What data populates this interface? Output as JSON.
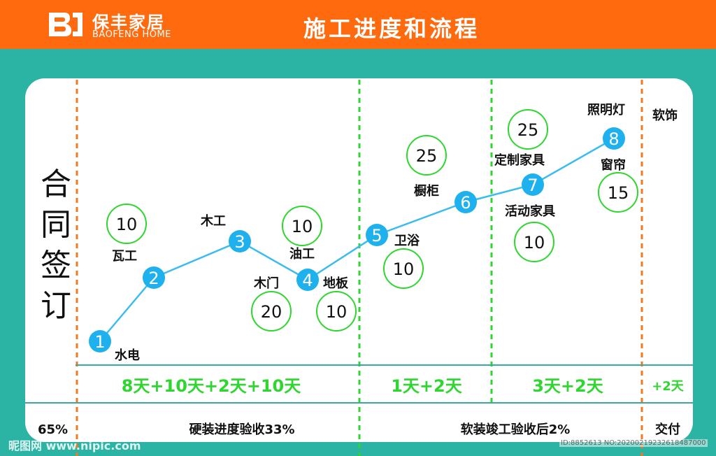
{
  "brand": {
    "name_cn": "保丰家居",
    "name_en": "BAOFENG HOME"
  },
  "title": "施工进度和流程",
  "contract_label": [
    "合",
    "同",
    "签",
    "订"
  ],
  "softdeco_label": "软饰",
  "steps": [
    {
      "num": "1",
      "name": "水电"
    },
    {
      "num": "2",
      "name": "瓦工"
    },
    {
      "num": "3",
      "name": "木工"
    },
    {
      "num": "4",
      "name": "油工"
    },
    {
      "num": "5",
      "name": "卫浴"
    },
    {
      "num": "6",
      "name": "橱柜"
    },
    {
      "num": "7",
      "name": "定制家具"
    },
    {
      "num": "8",
      "name": "照明灯"
    }
  ],
  "extra_labels": {
    "door": "木门",
    "floor": "地板",
    "movable_furniture": "活动家具",
    "curtain": "窗帘"
  },
  "day_circles": [
    "10",
    "10",
    "20",
    "10",
    "10",
    "25",
    "25",
    "10",
    "15"
  ],
  "durations": [
    "8天+10天+2天+10天",
    "1天+2天",
    "3天+2天",
    "+2天"
  ],
  "bottom": {
    "pct_left": "65%",
    "hard_check": "硬装进度验收33%",
    "soft_check": "软装竣工验收后2%",
    "delivery": "交付"
  },
  "watermark": {
    "site": "昵图网 www.nipic.com",
    "id": "ID:8852613 NO:20200219232618487000"
  },
  "colors": {
    "header": "#ff6a0e",
    "bg": "#2bb3a3",
    "line": "#3bbcef",
    "green": "#2fd62f",
    "orange_dash": "#f07a20"
  }
}
